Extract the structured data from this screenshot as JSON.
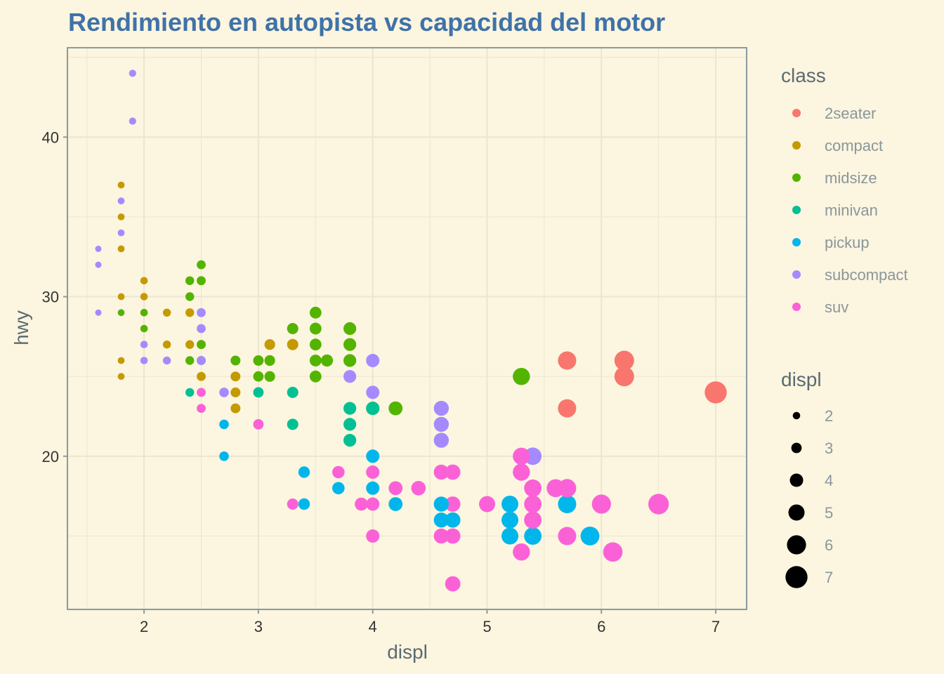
{
  "chart_data": {
    "type": "scatter",
    "title": "Rendimiento en autopista vs capacidad del motor",
    "xlabel": "displ",
    "ylabel": "hwy",
    "xlim": [
      1.33,
      7.27
    ],
    "ylim": [
      10.4,
      45.6
    ],
    "x_ticks": [
      2,
      3,
      4,
      5,
      6,
      7
    ],
    "y_ticks": [
      20,
      30,
      40
    ],
    "grid": true,
    "color_legend": {
      "title": "class",
      "placement": "right",
      "entries": [
        {
          "label": "2seater",
          "color": "#F8766D"
        },
        {
          "label": "compact",
          "color": "#C49A00"
        },
        {
          "label": "midsize",
          "color": "#53B400"
        },
        {
          "label": "minivan",
          "color": "#00C094"
        },
        {
          "label": "pickup",
          "color": "#00B6EB"
        },
        {
          "label": "subcompact",
          "color": "#A58AFF"
        },
        {
          "label": "suv",
          "color": "#FB61D7"
        }
      ]
    },
    "size_legend": {
      "title": "displ",
      "placement": "right",
      "values": [
        2,
        3,
        4,
        5,
        6,
        7
      ]
    },
    "colors": {
      "background": "#fcf5df",
      "title": "#3f72a8",
      "grid": "#ebe6d1",
      "border": "#8a9aa0"
    },
    "series": [
      {
        "name": "2seater",
        "color": "#F8766D",
        "points": [
          [
            5.7,
            26
          ],
          [
            5.7,
            23
          ],
          [
            6.2,
            26
          ],
          [
            6.2,
            25
          ],
          [
            7.0,
            24
          ]
        ]
      },
      {
        "name": "compact",
        "color": "#C49A00",
        "points": [
          [
            1.8,
            37
          ],
          [
            1.8,
            35
          ],
          [
            1.8,
            33
          ],
          [
            1.8,
            30
          ],
          [
            1.8,
            26
          ],
          [
            1.8,
            25
          ],
          [
            2.0,
            31
          ],
          [
            2.0,
            30
          ],
          [
            2.0,
            29
          ],
          [
            2.2,
            29
          ],
          [
            2.2,
            27
          ],
          [
            2.4,
            31
          ],
          [
            2.4,
            29
          ],
          [
            2.4,
            27
          ],
          [
            2.5,
            27
          ],
          [
            2.5,
            25
          ],
          [
            2.8,
            25
          ],
          [
            2.8,
            24
          ],
          [
            2.8,
            23
          ],
          [
            3.0,
            26
          ],
          [
            3.1,
            27
          ],
          [
            3.3,
            27
          ]
        ]
      },
      {
        "name": "midsize",
        "color": "#53B400",
        "points": [
          [
            1.8,
            29
          ],
          [
            2.0,
            29
          ],
          [
            2.0,
            28
          ],
          [
            2.4,
            31
          ],
          [
            2.4,
            30
          ],
          [
            2.4,
            26
          ],
          [
            2.5,
            32
          ],
          [
            2.5,
            31
          ],
          [
            2.5,
            27
          ],
          [
            2.5,
            26
          ],
          [
            2.8,
            26
          ],
          [
            3.0,
            26
          ],
          [
            3.0,
            25
          ],
          [
            3.1,
            26
          ],
          [
            3.1,
            25
          ],
          [
            3.3,
            28
          ],
          [
            3.5,
            29
          ],
          [
            3.5,
            28
          ],
          [
            3.5,
            27
          ],
          [
            3.5,
            26
          ],
          [
            3.5,
            25
          ],
          [
            3.6,
            26
          ],
          [
            3.8,
            28
          ],
          [
            3.8,
            27
          ],
          [
            3.8,
            26
          ],
          [
            4.0,
            23
          ],
          [
            4.2,
            23
          ],
          [
            5.3,
            25
          ]
        ]
      },
      {
        "name": "minivan",
        "color": "#00C094",
        "points": [
          [
            2.4,
            24
          ],
          [
            3.0,
            24
          ],
          [
            3.3,
            24
          ],
          [
            3.3,
            22
          ],
          [
            3.8,
            23
          ],
          [
            3.8,
            22
          ],
          [
            3.8,
            21
          ],
          [
            4.0,
            23
          ]
        ]
      },
      {
        "name": "pickup",
        "color": "#00B6EB",
        "points": [
          [
            2.7,
            22
          ],
          [
            2.7,
            20
          ],
          [
            3.4,
            19
          ],
          [
            3.4,
            17
          ],
          [
            3.7,
            18
          ],
          [
            4.0,
            20
          ],
          [
            4.0,
            18
          ],
          [
            4.2,
            17
          ],
          [
            4.6,
            17
          ],
          [
            4.6,
            16
          ],
          [
            4.7,
            16
          ],
          [
            5.2,
            17
          ],
          [
            5.2,
            16
          ],
          [
            5.2,
            15
          ],
          [
            5.4,
            15
          ],
          [
            5.7,
            17
          ],
          [
            5.9,
            15
          ]
        ]
      },
      {
        "name": "subcompact",
        "color": "#A58AFF",
        "points": [
          [
            1.6,
            33
          ],
          [
            1.6,
            32
          ],
          [
            1.6,
            29
          ],
          [
            1.8,
            36
          ],
          [
            1.8,
            34
          ],
          [
            1.9,
            44
          ],
          [
            1.9,
            41
          ],
          [
            2.0,
            27
          ],
          [
            2.0,
            26
          ],
          [
            2.2,
            26
          ],
          [
            2.5,
            29
          ],
          [
            2.5,
            28
          ],
          [
            2.5,
            26
          ],
          [
            2.7,
            24
          ],
          [
            3.8,
            25
          ],
          [
            4.0,
            26
          ],
          [
            4.0,
            24
          ],
          [
            4.6,
            23
          ],
          [
            4.6,
            22
          ],
          [
            4.6,
            21
          ],
          [
            5.4,
            20
          ]
        ]
      },
      {
        "name": "suv",
        "color": "#FB61D7",
        "points": [
          [
            2.5,
            24
          ],
          [
            2.5,
            23
          ],
          [
            3.0,
            22
          ],
          [
            3.3,
            17
          ],
          [
            3.7,
            19
          ],
          [
            3.9,
            17
          ],
          [
            4.0,
            19
          ],
          [
            4.0,
            17
          ],
          [
            4.0,
            15
          ],
          [
            4.2,
            18
          ],
          [
            4.4,
            18
          ],
          [
            4.6,
            19
          ],
          [
            4.6,
            15
          ],
          [
            4.7,
            19
          ],
          [
            4.7,
            17
          ],
          [
            4.7,
            15
          ],
          [
            4.7,
            12
          ],
          [
            5.0,
            17
          ],
          [
            5.3,
            20
          ],
          [
            5.3,
            19
          ],
          [
            5.3,
            14
          ],
          [
            5.4,
            18
          ],
          [
            5.4,
            17
          ],
          [
            5.4,
            16
          ],
          [
            5.6,
            18
          ],
          [
            5.7,
            18
          ],
          [
            5.7,
            15
          ],
          [
            6.0,
            17
          ],
          [
            6.1,
            14
          ],
          [
            6.5,
            17
          ]
        ]
      }
    ]
  }
}
